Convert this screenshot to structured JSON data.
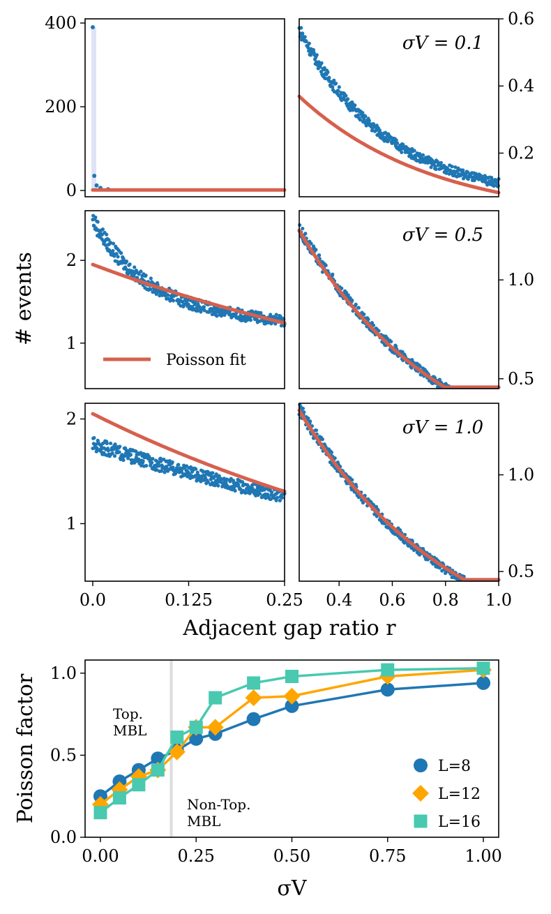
{
  "colors": {
    "data": "#1f77b4",
    "fit": "#d6604d",
    "L8": "#1f77b4",
    "L12": "#ffa500",
    "L16": "#48c9b0",
    "band": "#dfe3f5",
    "divider": "#dddddd"
  },
  "figure": {
    "ylabel_top": "# events",
    "xlabel_top": "Adjacent gap ratio r",
    "fit_legend": "Poisson fit"
  },
  "chart_data": [
    {
      "id": "left-top",
      "type": "scatter",
      "xlim": [
        -0.01,
        0.25
      ],
      "ylim": [
        -15,
        410
      ],
      "yticks": [
        0,
        200,
        400
      ],
      "ytick_labels": [
        "0",
        "200",
        "400"
      ],
      "spike_x": [
        0,
        0.002,
        0.005,
        0.01,
        0.02
      ],
      "spike_y": [
        390,
        35,
        12,
        6,
        3
      ],
      "fit": {
        "A": 1.95,
        "k": 1.8
      }
    },
    {
      "id": "right-top",
      "type": "scatter",
      "xlim": [
        0.25,
        1.0
      ],
      "ylim": [
        0.07,
        0.6
      ],
      "yticks": [
        0.2,
        0.4,
        0.6
      ],
      "ytick_labels": [
        "0.2",
        "0.4",
        "0.6"
      ],
      "annotation": "σV = 0.1",
      "data": {
        "C": 0.509,
        "k": 3.06,
        "noise": 0.012
      },
      "fit": {
        "A": 0.369,
        "k": 2.0
      }
    },
    {
      "id": "left-mid",
      "type": "scatter",
      "xlim": [
        -0.01,
        0.25
      ],
      "ylim": [
        0.45,
        2.6
      ],
      "yticks": [
        1,
        2
      ],
      "ytick_labels": [
        "1",
        "2"
      ],
      "legend": "Poisson fit",
      "data": {
        "C": 1.45,
        "A": 1.05,
        "k": 16,
        "noise": 0.03
      },
      "fit": {
        "A": 1.95,
        "k": 1.8
      }
    },
    {
      "id": "right-mid",
      "type": "scatter",
      "xlim": [
        0.25,
        1.0
      ],
      "ylim": [
        0.45,
        1.35
      ],
      "yticks": [
        0.5,
        1.0
      ],
      "ytick_labels": [
        "0.5",
        "1.0"
      ],
      "annotation": "σV = 0.5",
      "data": {
        "A": 2.0,
        "k": 1.85,
        "noise": 0.015
      },
      "fit": {
        "A": 1.98,
        "k": 1.84
      }
    },
    {
      "id": "left-bot",
      "type": "scatter",
      "xlim": [
        -0.01,
        0.25
      ],
      "ylim": [
        0.45,
        2.15
      ],
      "yticks": [
        1,
        2
      ],
      "ytick_labels": [
        "1",
        "2"
      ],
      "data": {
        "A": 1.76,
        "k": 1.35,
        "noise": 0.025
      },
      "fit": {
        "A": 2.05,
        "k": 1.8
      }
    },
    {
      "id": "right-bot",
      "type": "scatter",
      "xlim": [
        0.25,
        1.0
      ],
      "ylim": [
        0.45,
        1.37
      ],
      "yticks": [
        0.5,
        1.0
      ],
      "ytick_labels": [
        "0.5",
        "1.0"
      ],
      "annotation": "σV = 1.0",
      "data": {
        "A": 2.08,
        "k": 1.75,
        "noise": 0.015
      },
      "fit": {
        "A": 2.05,
        "k": 1.72
      }
    },
    {
      "id": "bottom-left-xaxis",
      "type": "axis",
      "xticks": [
        0.0,
        0.125,
        0.25
      ],
      "xtick_labels": [
        "0.0",
        "0.125",
        "0.25"
      ]
    },
    {
      "id": "bottom-right-xaxis",
      "type": "axis",
      "xticks": [
        0.4,
        0.6,
        0.8,
        1.0
      ],
      "xtick_labels": [
        "0.4",
        "0.6",
        "0.8",
        "1.0"
      ]
    },
    {
      "id": "poisson-factor",
      "type": "line",
      "xlabel": "σV",
      "ylabel": "Poisson factor",
      "xlim": [
        -0.04,
        1.04
      ],
      "ylim": [
        0.0,
        1.08
      ],
      "xticks": [
        0.0,
        0.25,
        0.5,
        0.75,
        1.0
      ],
      "xtick_labels": [
        "0.00",
        "0.25",
        "0.50",
        "0.75",
        "1.00"
      ],
      "yticks": [
        0.0,
        0.5,
        1.0
      ],
      "ytick_labels": [
        "0.0",
        "0.5",
        "1.0"
      ],
      "vline_x": 0.185,
      "region_labels": {
        "left": [
          "Top.",
          "MBL"
        ],
        "right": [
          "Non-Top.",
          "MBL"
        ]
      },
      "series": [
        {
          "name": "L=8",
          "marker": "circle",
          "x": [
            0.0,
            0.05,
            0.1,
            0.15,
            0.2,
            0.25,
            0.3,
            0.4,
            0.5,
            0.75,
            1.0
          ],
          "y": [
            0.25,
            0.34,
            0.41,
            0.48,
            0.53,
            0.6,
            0.63,
            0.72,
            0.8,
            0.9,
            0.94
          ]
        },
        {
          "name": "L=12",
          "marker": "diamond",
          "x": [
            0.0,
            0.05,
            0.1,
            0.15,
            0.2,
            0.25,
            0.3,
            0.4,
            0.5,
            0.75,
            1.0
          ],
          "y": [
            0.2,
            0.29,
            0.37,
            0.41,
            0.52,
            0.67,
            0.67,
            0.85,
            0.86,
            0.98,
            1.02
          ]
        },
        {
          "name": "L=16",
          "marker": "square",
          "x": [
            0.0,
            0.05,
            0.1,
            0.15,
            0.2,
            0.25,
            0.3,
            0.4,
            0.5,
            0.75,
            1.0
          ],
          "y": [
            0.15,
            0.24,
            0.32,
            0.41,
            0.61,
            0.67,
            0.85,
            0.94,
            0.98,
            1.02,
            1.03
          ]
        }
      ]
    }
  ]
}
